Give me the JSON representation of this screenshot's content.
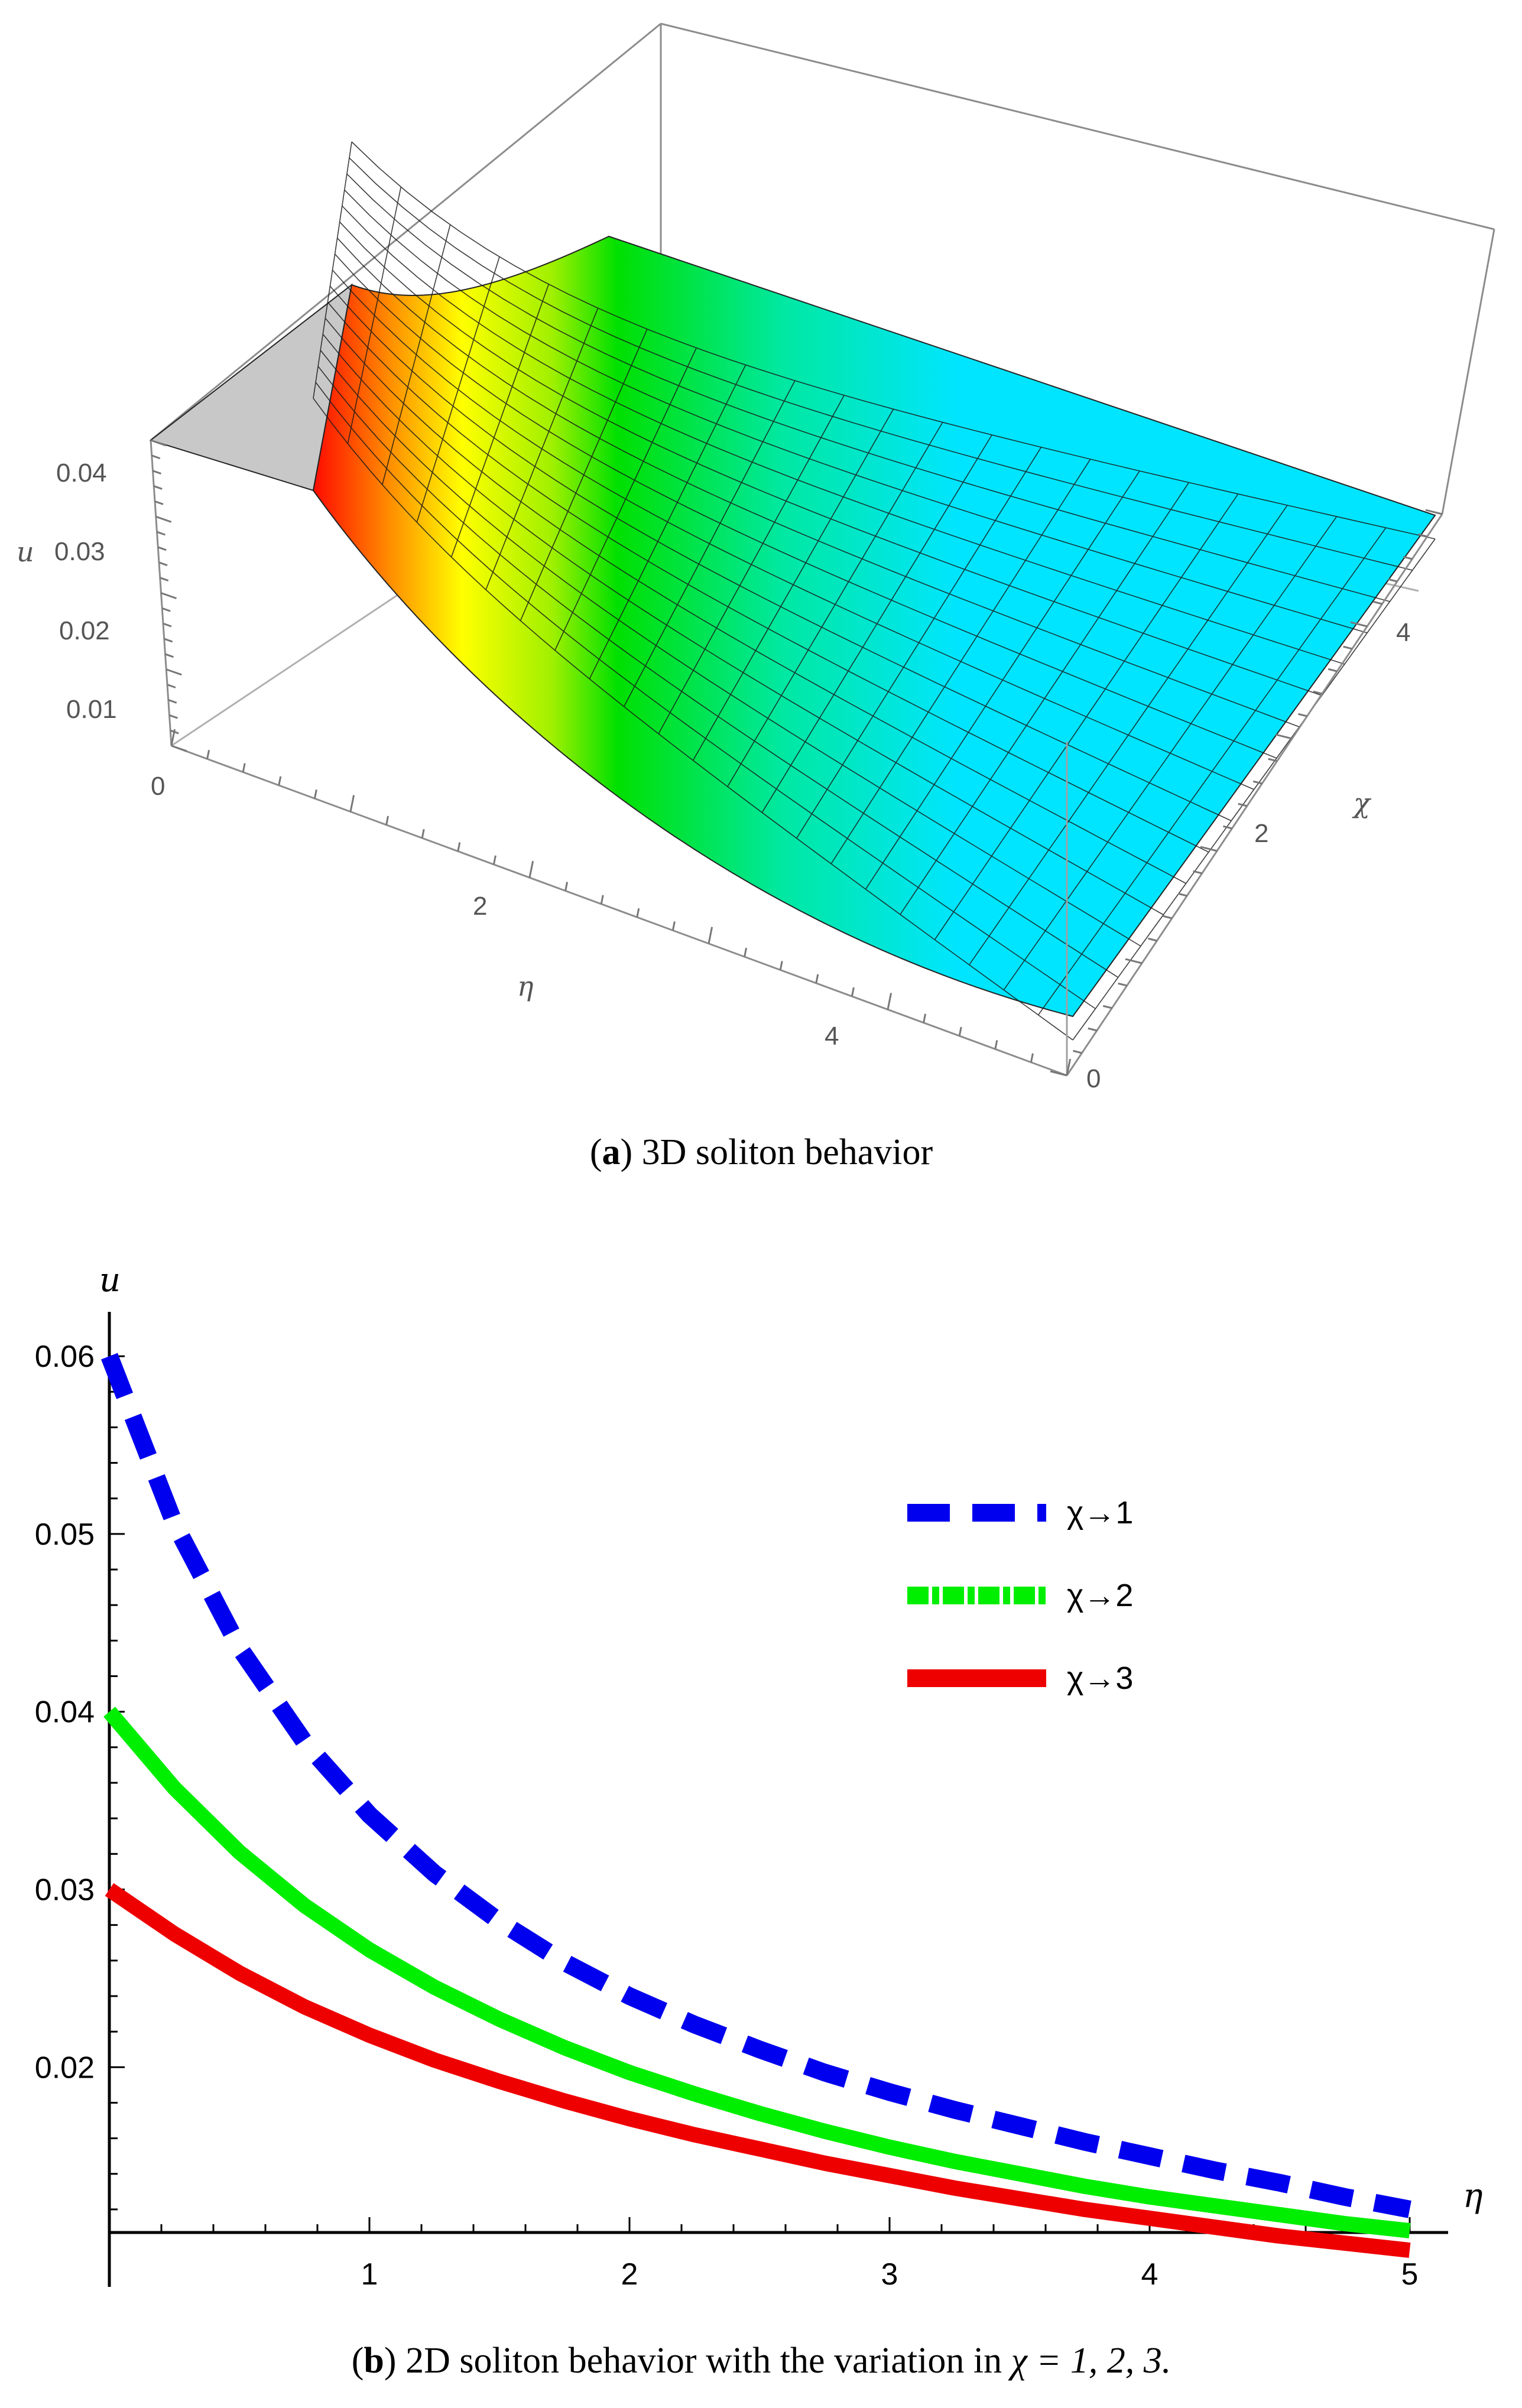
{
  "figure": {
    "panel_a": {
      "caption_letter": "a",
      "caption_text": "3D soliton behavior"
    },
    "panel_b": {
      "caption_letter": "b",
      "caption_text": "2D soliton behavior with the variation in",
      "caption_math": "χ = 1, 2, 3."
    }
  },
  "chart_data": [
    {
      "type": "surface3d",
      "title": "3D soliton behavior",
      "xlabel": "η",
      "ylabel": "χ",
      "zlabel": "u",
      "x_ticks": [
        "0",
        "2",
        "4"
      ],
      "y_ticks": [
        "0",
        "2",
        "4"
      ],
      "z_ticks": [
        "0.01",
        "0.02",
        "0.03",
        "0.04"
      ],
      "x_range": [
        0,
        5
      ],
      "y_range": [
        0,
        5
      ],
      "z_range": [
        0,
        0.045
      ],
      "colors": {
        "high": "#ff0000",
        "mid_high": "#ffff00",
        "mid": "#00e000",
        "low": "#00e5ff",
        "plateau": "#c8c8c8"
      }
    },
    {
      "type": "line",
      "title": "2D soliton behavior with the variation in χ = 1, 2, 3.",
      "xlabel": "η",
      "ylabel": "u",
      "x_ticks": [
        "1",
        "2",
        "3",
        "4",
        "5"
      ],
      "y_ticks": [
        "0.02",
        "0.03",
        "0.04",
        "0.05",
        "0.06"
      ],
      "xlim": [
        0,
        5
      ],
      "ylim": [
        0.0107,
        0.0615
      ],
      "x": [
        0,
        0.25,
        0.5,
        0.75,
        1,
        1.25,
        1.5,
        1.75,
        2,
        2.25,
        2.5,
        2.75,
        3,
        3.25,
        3.5,
        3.75,
        4,
        4.25,
        4.5,
        4.75,
        5
      ],
      "series": [
        {
          "name": "χ→1",
          "color": "#0000ee",
          "style": "dashed",
          "values": [
            0.06,
            0.0506,
            0.0436,
            0.0383,
            0.0342,
            0.0309,
            0.0282,
            0.0259,
            0.024,
            0.0224,
            0.021,
            0.0197,
            0.0186,
            0.0176,
            0.0167,
            0.0158,
            0.015,
            0.0142,
            0.0135,
            0.0127,
            0.012
          ]
        },
        {
          "name": "χ→2",
          "color": "#00ee00",
          "style": "dashdot",
          "values": [
            0.04,
            0.0357,
            0.0321,
            0.0291,
            0.0266,
            0.0245,
            0.0227,
            0.0211,
            0.0197,
            0.0185,
            0.0174,
            0.0164,
            0.0155,
            0.0147,
            0.014,
            0.0133,
            0.0127,
            0.0122,
            0.0117,
            0.0112,
            0.0108
          ]
        },
        {
          "name": "χ→3",
          "color": "#ee0000",
          "style": "solid",
          "values": [
            0.03,
            0.0275,
            0.0253,
            0.0234,
            0.0218,
            0.0204,
            0.0192,
            0.0181,
            0.0171,
            0.0162,
            0.0154,
            0.0146,
            0.0139,
            0.0132,
            0.0126,
            0.012,
            0.0115,
            0.011,
            0.0105,
            0.0101,
            0.0097
          ]
        }
      ]
    }
  ]
}
